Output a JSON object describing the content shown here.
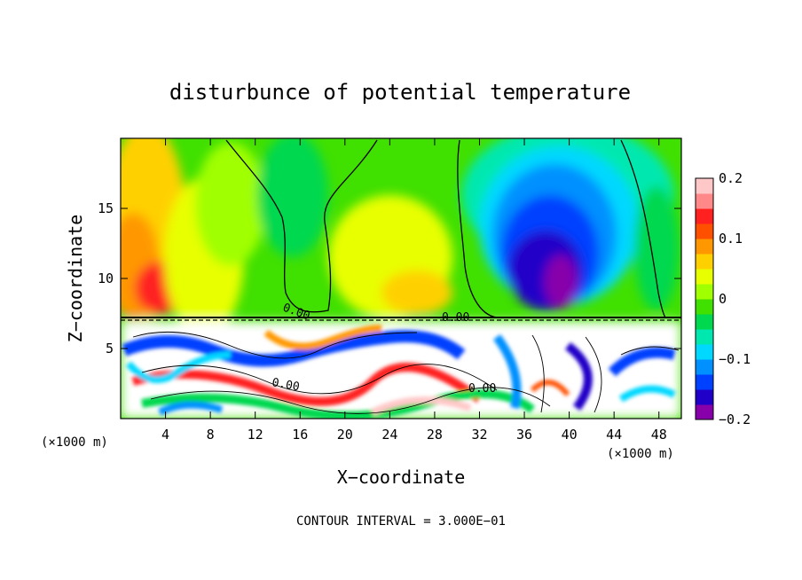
{
  "chart_data": {
    "type": "heatmap",
    "title": "disturbunce of potential temperature",
    "xlabel": "X−coordinate",
    "ylabel": "Z−coordinate",
    "x_unit_left": "(×1000 m)",
    "x_unit_right": "(×1000 m)",
    "footer": "CONTOUR INTERVAL = 3.000E−01",
    "xlim": [
      0,
      50
    ],
    "ylim": [
      0,
      20
    ],
    "x_ticks": [
      4,
      8,
      12,
      16,
      20,
      24,
      28,
      32,
      36,
      40,
      44,
      48
    ],
    "y_ticks": [
      5,
      10,
      15
    ],
    "colorbar": {
      "range": [
        -0.2,
        0.2
      ],
      "tick_values": [
        0.2,
        0.1,
        0,
        -0.1,
        -0.2
      ],
      "tick_labels": [
        "0.2",
        "0.1",
        "0",
        "−0.1",
        "−0.2"
      ],
      "colors": [
        "#8800aa",
        "#2000c8",
        "#0040ff",
        "#0090ff",
        "#00d8ff",
        "#00e8b0",
        "#00d850",
        "#40e000",
        "#a0ff00",
        "#e8ff00",
        "#ffd000",
        "#ff9800",
        "#ff5000",
        "#ff2020",
        "#ff8888",
        "#ffc8c8"
      ]
    },
    "contour_labels": [
      "0.00",
      "0.00",
      "0.00",
      "0.00"
    ],
    "grid": false,
    "legend": "colorbar-right"
  }
}
